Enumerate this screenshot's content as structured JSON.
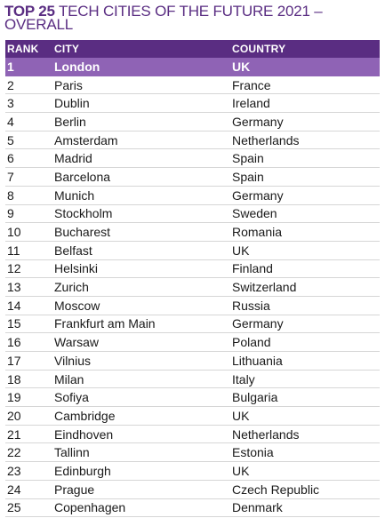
{
  "title": {
    "bold": "TOP 25",
    "rest": "TECH CITIES OF THE FUTURE 2021 –",
    "line2": "OVERALL"
  },
  "colors": {
    "header_bg": "#5a2d82",
    "highlight_bg": "#8f63b5",
    "title": "#5a2d82",
    "row_rule": "#d6d6d6"
  },
  "table": {
    "headers": {
      "rank": "RANK",
      "city": "CITY",
      "country": "COUNTRY"
    },
    "rows": [
      {
        "rank": "1",
        "city": "London",
        "country": "UK"
      },
      {
        "rank": "2",
        "city": "Paris",
        "country": "France"
      },
      {
        "rank": "3",
        "city": "Dublin",
        "country": "Ireland"
      },
      {
        "rank": "4",
        "city": "Berlin",
        "country": "Germany"
      },
      {
        "rank": "5",
        "city": "Amsterdam",
        "country": "Netherlands"
      },
      {
        "rank": "6",
        "city": "Madrid",
        "country": "Spain"
      },
      {
        "rank": "7",
        "city": "Barcelona",
        "country": "Spain"
      },
      {
        "rank": "8",
        "city": "Munich",
        "country": "Germany"
      },
      {
        "rank": "9",
        "city": "Stockholm",
        "country": "Sweden"
      },
      {
        "rank": "10",
        "city": "Bucharest",
        "country": "Romania"
      },
      {
        "rank": "11",
        "city": "Belfast",
        "country": "UK"
      },
      {
        "rank": "12",
        "city": "Helsinki",
        "country": "Finland"
      },
      {
        "rank": "13",
        "city": "Zurich",
        "country": "Switzerland"
      },
      {
        "rank": "14",
        "city": "Moscow",
        "country": "Russia"
      },
      {
        "rank": "15",
        "city": "Frankfurt am Main",
        "country": "Germany"
      },
      {
        "rank": "16",
        "city": "Warsaw",
        "country": "Poland"
      },
      {
        "rank": "17",
        "city": "Vilnius",
        "country": "Lithuania"
      },
      {
        "rank": "18",
        "city": "Milan",
        "country": "Italy"
      },
      {
        "rank": "19",
        "city": "Sofiya",
        "country": "Bulgaria"
      },
      {
        "rank": "20",
        "city": "Cambridge",
        "country": "UK"
      },
      {
        "rank": "21",
        "city": "Eindhoven",
        "country": "Netherlands"
      },
      {
        "rank": "22",
        "city": "Tallinn",
        "country": "Estonia"
      },
      {
        "rank": "23",
        "city": "Edinburgh",
        "country": "UK"
      },
      {
        "rank": "24",
        "city": "Prague",
        "country": "Czech Republic"
      },
      {
        "rank": "25",
        "city": "Copenhagen",
        "country": "Denmark"
      }
    ]
  }
}
